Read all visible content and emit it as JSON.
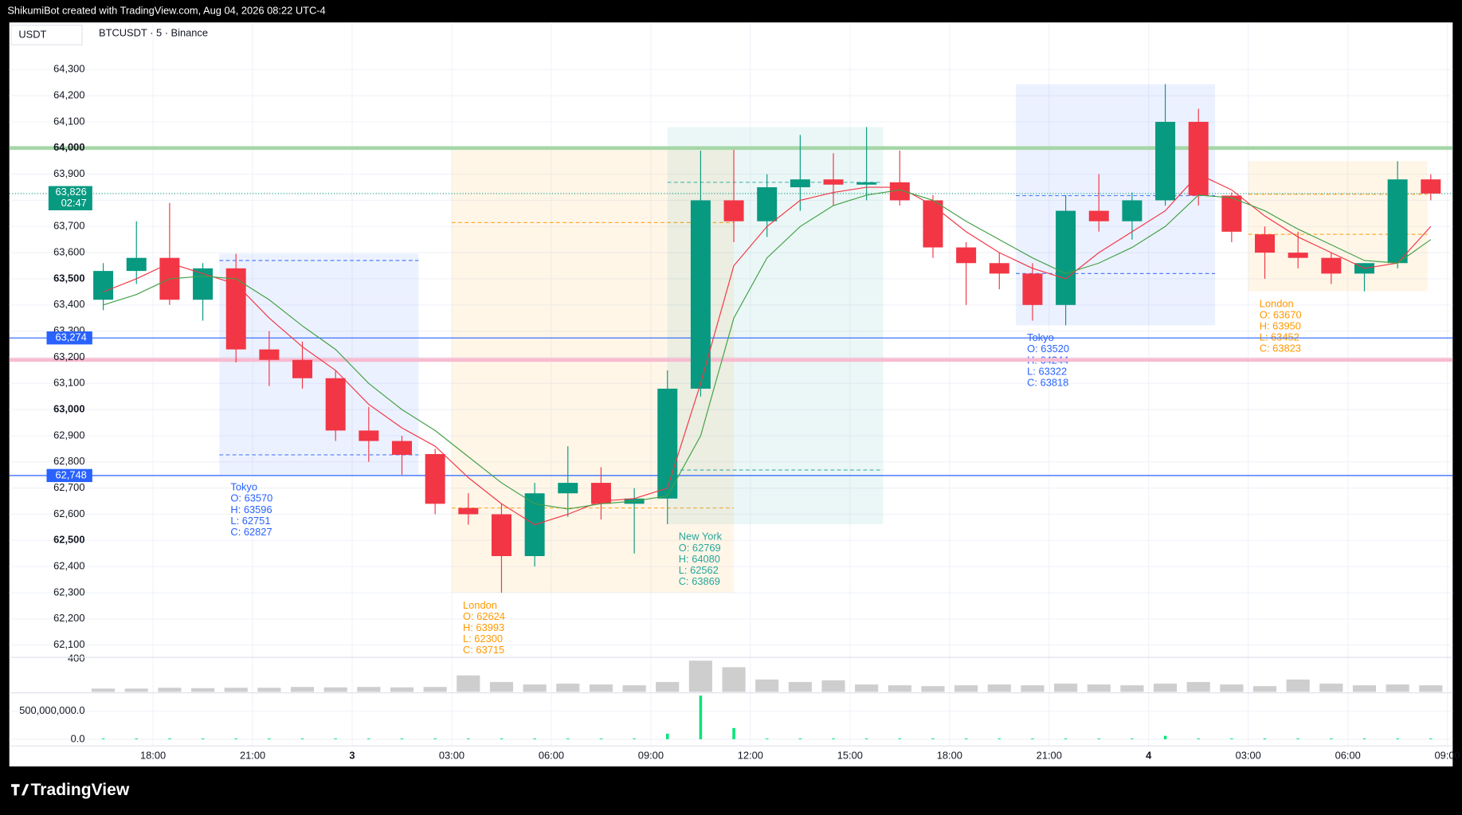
{
  "header": {
    "credit": "ShikumiBot created with TradingView.com, Aug 04, 2026 08:22 UTC-4"
  },
  "footer": {
    "brand": "TradingView"
  },
  "chart_data": {
    "type": "candlestick",
    "title": "BTCUSDT · 5 · Binance",
    "currency": "USDT",
    "up_color": "#089981",
    "down_color": "#f23645",
    "x": [
      16,
      17,
      18,
      19,
      20,
      21,
      22,
      23,
      24,
      25,
      26,
      27,
      28,
      29,
      30,
      31,
      32,
      33,
      34,
      35,
      36,
      37,
      38,
      39,
      40,
      41,
      42,
      43,
      44,
      45,
      46,
      47,
      48,
      49,
      50,
      51,
      52,
      53,
      54,
      55,
      56
    ],
    "open": [
      63420,
      63530,
      63580,
      63420,
      63540,
      63230,
      63190,
      63120,
      62920,
      62880,
      62830,
      62624,
      62600,
      62440,
      62680,
      62720,
      62640,
      62660,
      63080,
      63800,
      63720,
      63850,
      63880,
      63860,
      63869,
      63800,
      63620,
      63560,
      63520,
      63400,
      63760,
      63720,
      63800,
      64100,
      63818,
      63670,
      63600,
      63580,
      63520,
      63560,
      63880
    ],
    "high": [
      63560,
      63720,
      63790,
      63560,
      63596,
      63300,
      63260,
      63150,
      63010,
      62900,
      62850,
      62680,
      62640,
      62720,
      62860,
      62780,
      62700,
      63150,
      63990,
      63993,
      63900,
      64050,
      63980,
      64080,
      63990,
      63820,
      63640,
      63600,
      63560,
      63820,
      63900,
      63830,
      64244,
      64150,
      63830,
      63700,
      63680,
      63600,
      63560,
      63950,
      63900
    ],
    "low": [
      63380,
      63480,
      63400,
      63340,
      63180,
      63090,
      63080,
      62880,
      62800,
      62751,
      62600,
      62560,
      62300,
      62400,
      62590,
      62580,
      62450,
      62562,
      63050,
      63640,
      63660,
      63760,
      63780,
      63800,
      63780,
      63580,
      63400,
      63460,
      63340,
      63322,
      63680,
      63650,
      63780,
      63780,
      63640,
      63500,
      63540,
      63480,
      63452,
      63540,
      63800
    ],
    "close": [
      63530,
      63580,
      63420,
      63540,
      63230,
      63190,
      63120,
      62920,
      62880,
      62827,
      62640,
      62600,
      62440,
      62680,
      62720,
      62640,
      62660,
      63080,
      63800,
      63720,
      63850,
      63880,
      63860,
      63869,
      63800,
      63620,
      63560,
      63520,
      63400,
      63760,
      63720,
      63800,
      64100,
      63818,
      63680,
      63600,
      63580,
      63520,
      63560,
      63880,
      63826
    ],
    "moving_averages": [
      {
        "color": "#f23645",
        "values": [
          63450,
          63500,
          63560,
          63520,
          63480,
          63350,
          63240,
          63150,
          63020,
          62930,
          62860,
          62740,
          62640,
          62560,
          62600,
          62650,
          62660,
          62700,
          63100,
          63550,
          63700,
          63800,
          63830,
          63850,
          63850,
          63780,
          63680,
          63600,
          63540,
          63500,
          63600,
          63680,
          63760,
          63900,
          63840,
          63740,
          63660,
          63600,
          63540,
          63560,
          63700
        ]
      },
      {
        "color": "#43a047",
        "values": [
          63400,
          63440,
          63500,
          63510,
          63500,
          63420,
          63320,
          63230,
          63100,
          63000,
          62920,
          62820,
          62720,
          62640,
          62620,
          62640,
          62650,
          62670,
          62900,
          63350,
          63580,
          63700,
          63780,
          63820,
          63840,
          63800,
          63720,
          63650,
          63580,
          63520,
          63560,
          63620,
          63700,
          63820,
          63810,
          63760,
          63690,
          63630,
          63570,
          63560,
          63650
        ]
      }
    ],
    "xlim": [
      13.67,
      57.16
    ],
    "xticks": [
      {
        "value": 18,
        "label": "18:00"
      },
      {
        "value": 21,
        "label": "21:00"
      },
      {
        "value": 24,
        "label": "3",
        "bold": true
      },
      {
        "value": 27,
        "label": "03:00"
      },
      {
        "value": 30,
        "label": "06:00"
      },
      {
        "value": 33,
        "label": "09:00"
      },
      {
        "value": 36,
        "label": "12:00"
      },
      {
        "value": 39,
        "label": "15:00"
      },
      {
        "value": 42,
        "label": "18:00"
      },
      {
        "value": 45,
        "label": "21:00"
      },
      {
        "value": 48,
        "label": "4",
        "bold": true
      },
      {
        "value": 51,
        "label": "03:00"
      },
      {
        "value": 54,
        "label": "06:00"
      },
      {
        "value": 57,
        "label": "09:00"
      }
    ],
    "ylim": [
      62060,
      64480
    ],
    "yticks": [
      {
        "value": 62100,
        "label": "62,100"
      },
      {
        "value": 62200,
        "label": "62,200"
      },
      {
        "value": 62300,
        "label": "62,300"
      },
      {
        "value": 62400,
        "label": "62,400"
      },
      {
        "value": 62500,
        "label": "62,500",
        "bold": true
      },
      {
        "value": 62600,
        "label": "62,600"
      },
      {
        "value": 62700,
        "label": "62,700"
      },
      {
        "value": 62800,
        "label": "62,800"
      },
      {
        "value": 62900,
        "label": "62,900"
      },
      {
        "value": 63000,
        "label": "63,000",
        "bold": true
      },
      {
        "value": 63100,
        "label": "63,100"
      },
      {
        "value": 63200,
        "label": "63,200"
      },
      {
        "value": 63300,
        "label": "63,300"
      },
      {
        "value": 63400,
        "label": "63,400"
      },
      {
        "value": 63500,
        "label": "63,500",
        "bold": true
      },
      {
        "value": 63600,
        "label": "63,600"
      },
      {
        "value": 63700,
        "label": "63,700"
      },
      {
        "value": 63800,
        "label": "63,800"
      },
      {
        "value": 63900,
        "label": "63,900"
      },
      {
        "value": 64000,
        "label": "64,000",
        "bold": true
      },
      {
        "value": 64100,
        "label": "64,100"
      },
      {
        "value": 64200,
        "label": "64,200"
      },
      {
        "value": 64300,
        "label": "64,300"
      }
    ],
    "levels": [
      {
        "value": 64000,
        "color": "#a5d6a7",
        "width": 4
      },
      {
        "value": 63190,
        "color": "#f8bbd0",
        "width": 4
      },
      {
        "value": 63274,
        "label": "63,274",
        "color": "#2962ff",
        "width": 1
      },
      {
        "value": 62748,
        "label": "62,748",
        "color": "#2962ff",
        "width": 1
      }
    ],
    "last_price": {
      "value": 63826,
      "label": "63,826",
      "countdown": "02:47",
      "color": "#089981"
    },
    "sessions": [
      {
        "name": "Tokyo",
        "start": 20,
        "end": 26,
        "color": "#2962ff",
        "ohlc": [
          63570,
          63596,
          62751,
          62827
        ],
        "ohlc_labels": [
          "O: 63570",
          "H: 63596",
          "L: 62751",
          "C: 62827"
        ]
      },
      {
        "name": "London",
        "start": 27,
        "end": 35.5,
        "color": "#ff9800",
        "ohlc": [
          62624,
          63993,
          62300,
          63715
        ],
        "ohlc_labels": [
          "O: 62624",
          "H: 63993",
          "L: 62300",
          "C: 63715"
        ]
      },
      {
        "name": "New York",
        "start": 33.5,
        "end": 40,
        "color": "#26a69a",
        "ohlc": [
          62769,
          64080,
          62562,
          63869
        ],
        "ohlc_labels": [
          "O: 62769",
          "H: 64080",
          "L: 62562",
          "C: 63869"
        ]
      },
      {
        "name": "Tokyo",
        "start": 44,
        "end": 50,
        "color": "#2962ff",
        "ohlc": [
          63520,
          64244,
          63322,
          63818
        ],
        "ohlc_labels": [
          "O: 63520",
          "H: 64244",
          "L: 63322",
          "C: 63818"
        ]
      },
      {
        "name": "London",
        "start": 51,
        "end": 56.4,
        "color": "#ff9800",
        "ohlc": [
          63670,
          63950,
          63452,
          63823
        ],
        "ohlc_labels": [
          "O: 63670",
          "H: 63950",
          "L: 63452",
          "C: 63823"
        ]
      }
    ],
    "volume": {
      "color": "#9e9e9e",
      "ylim": [
        0,
        420
      ],
      "yticks": [
        400
      ],
      "values": [
        40,
        40,
        50,
        45,
        50,
        50,
        60,
        55,
        60,
        55,
        60,
        200,
        120,
        90,
        100,
        90,
        80,
        120,
        380,
        300,
        150,
        120,
        140,
        90,
        80,
        70,
        80,
        90,
        80,
        100,
        90,
        80,
        100,
        120,
        90,
        70,
        150,
        100,
        80,
        90,
        80
      ]
    },
    "indicator": {
      "color": "#00e676",
      "ylim": [
        -120000000,
        830000000
      ],
      "yticks": [
        {
          "value": 500000000,
          "label": "500,000,000.0"
        },
        {
          "value": 0,
          "label": "0.0"
        }
      ],
      "values": [
        15000000,
        15000000,
        15000000,
        15000000,
        15000000,
        15000000,
        15000000,
        15000000,
        15000000,
        15000000,
        15000000,
        15000000,
        15000000,
        15000000,
        15000000,
        15000000,
        15000000,
        100000000,
        780000000,
        200000000,
        15000000,
        15000000,
        15000000,
        15000000,
        15000000,
        15000000,
        15000000,
        15000000,
        15000000,
        15000000,
        15000000,
        15000000,
        60000000,
        15000000,
        15000000,
        15000000,
        15000000,
        15000000,
        15000000,
        15000000,
        15000000
      ]
    }
  }
}
